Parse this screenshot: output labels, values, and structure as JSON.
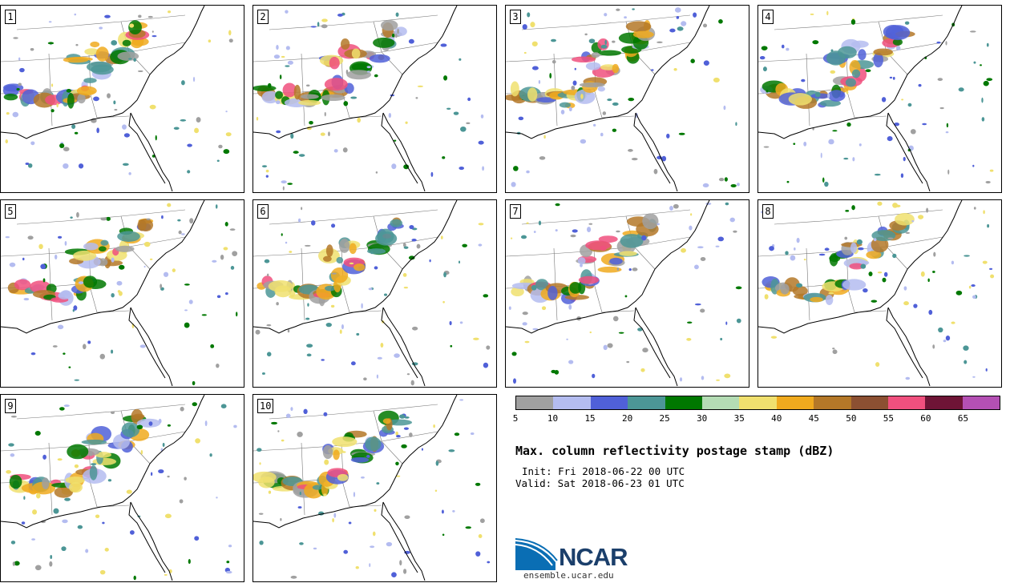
{
  "panels": [
    {
      "label": "1"
    },
    {
      "label": "2"
    },
    {
      "label": "3"
    },
    {
      "label": "4"
    },
    {
      "label": "5"
    },
    {
      "label": "6"
    },
    {
      "label": "7"
    },
    {
      "label": "8"
    },
    {
      "label": "9"
    },
    {
      "label": "10"
    }
  ],
  "colorbar": {
    "colors": [
      "#a0a0a0",
      "#b4bcf0",
      "#5060d8",
      "#4c9696",
      "#007800",
      "#b4dcb4",
      "#f0e06e",
      "#f0aa1e",
      "#b47828",
      "#8c5032",
      "#f0507e",
      "#6e1436",
      "#b450b4"
    ],
    "tick_labels": [
      "5",
      "10",
      "15",
      "20",
      "25",
      "30",
      "35",
      "40",
      "45",
      "50",
      "55",
      "60",
      "65"
    ]
  },
  "title": "Max. column reflectivity postage stamp (dBZ)",
  "init": "Init: Fri 2018-06-22 00 UTC",
  "valid": "Valid: Sat 2018-06-23 01 UTC",
  "logo": {
    "name": "NCAR",
    "site": "ensemble.ucar.edu"
  }
}
